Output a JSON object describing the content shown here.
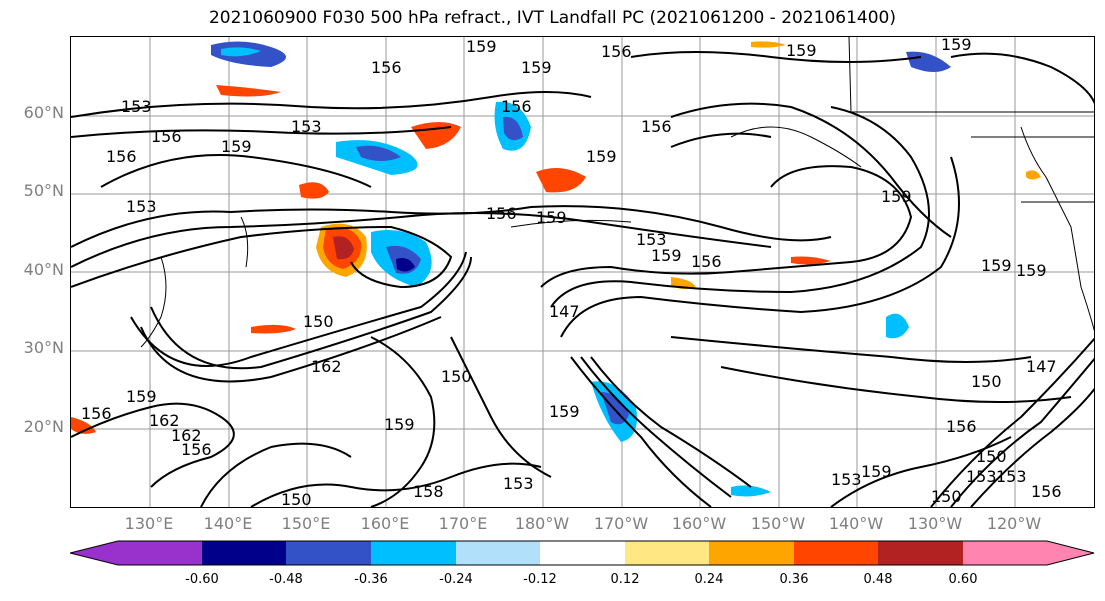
{
  "title": "2021060900 F030 500 hPa refract., IVT Landfall PC (2021061200 - 2021061400)",
  "lat_labels": [
    "60°N",
    "50°N",
    "40°N",
    "30°N",
    "20°N"
  ],
  "lon_labels": [
    "130°E",
    "140°E",
    "150°E",
    "160°E",
    "170°E",
    "180°W",
    "170°W",
    "160°W",
    "150°W",
    "140°W",
    "130°W",
    "120°W"
  ],
  "colorbar": {
    "colors": [
      "#9932cc",
      "#00008b",
      "#3452c8",
      "#00bfff",
      "#b0e0fa",
      "#ffffff",
      "#ffe884",
      "#ffa500",
      "#ff4500",
      "#b22222",
      "#ff85b0"
    ],
    "tick_labels": [
      "-0.60",
      "-0.48",
      "-0.36",
      "-0.24",
      "-0.12",
      "0.12",
      "0.24",
      "0.36",
      "0.48",
      "0.60"
    ]
  },
  "contour_labels": [
    "159",
    "159",
    "156",
    "159",
    "156",
    "159",
    "153",
    "156",
    "153",
    "156",
    "156",
    "159",
    "153",
    "156",
    "159",
    "156",
    "159",
    "153",
    "159",
    "156",
    "159",
    "159",
    "159",
    "150",
    "162",
    "150",
    "159",
    "156",
    "162",
    "156",
    "159",
    "147",
    "159",
    "153",
    "158",
    "153",
    "150",
    "150",
    "147",
    "156",
    "153",
    "150",
    "153",
    "159",
    "156",
    "150",
    "162"
  ]
}
